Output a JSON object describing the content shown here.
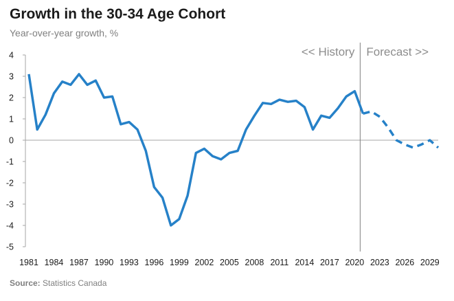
{
  "title": "Growth in the 30-34 Age Cohort",
  "subtitle": "Year-over-year  growth, %",
  "source": {
    "label": "Source:",
    "text": " Statistics Canada"
  },
  "chart_data": {
    "type": "line",
    "title": "Growth in the 30-34 Age Cohort",
    "ylabel": "Year-over-year  growth, %",
    "ylim": [
      -5,
      4
    ],
    "yticks": [
      "4",
      "3",
      "2",
      "1",
      "0",
      "-1",
      "-2",
      "-3",
      "-4",
      "-5"
    ],
    "xticks": [
      "1981",
      "1984",
      "1987",
      "1990",
      "1993",
      "1996",
      "1999",
      "2002",
      "2005",
      "2008",
      "2011",
      "2014",
      "2017",
      "2020",
      "2023",
      "2026",
      "2029"
    ],
    "grid": false,
    "color": "#2681c8",
    "divider_year": 2020,
    "annotations": {
      "left": "<< History",
      "right": "Forecast >>"
    },
    "series": [
      {
        "style": "solid",
        "x": [
          1981,
          1982,
          1983,
          1984,
          1985,
          1986,
          1987,
          1988,
          1989,
          1990,
          1991,
          1992,
          1993,
          1994,
          1995,
          1996,
          1997,
          1998,
          1999,
          2000,
          2001,
          2002,
          2003,
          2004,
          2005,
          2006,
          2007,
          2008,
          2009,
          2010,
          2011,
          2012,
          2013,
          2014,
          2015,
          2016,
          2017,
          2018,
          2019,
          2020,
          2021
        ],
        "y": [
          3.1,
          0.5,
          1.2,
          2.2,
          2.75,
          2.6,
          3.1,
          2.6,
          2.8,
          2.0,
          2.05,
          0.75,
          0.85,
          0.5,
          -0.5,
          -2.2,
          -2.7,
          -4.0,
          -3.7,
          -2.6,
          -0.6,
          -0.4,
          -0.75,
          -0.9,
          -0.6,
          -0.5,
          0.5,
          1.15,
          1.75,
          1.7,
          1.9,
          1.8,
          1.85,
          1.55,
          0.5,
          1.15,
          1.05,
          1.5,
          2.05,
          2.3,
          1.25
        ]
      },
      {
        "style": "dashed",
        "x": [
          2021,
          2022,
          2023,
          2024,
          2025,
          2026,
          2027,
          2028,
          2029,
          2030
        ],
        "y": [
          1.25,
          1.35,
          1.1,
          0.6,
          0.0,
          -0.2,
          -0.35,
          -0.2,
          0.0,
          -0.35
        ]
      }
    ]
  }
}
